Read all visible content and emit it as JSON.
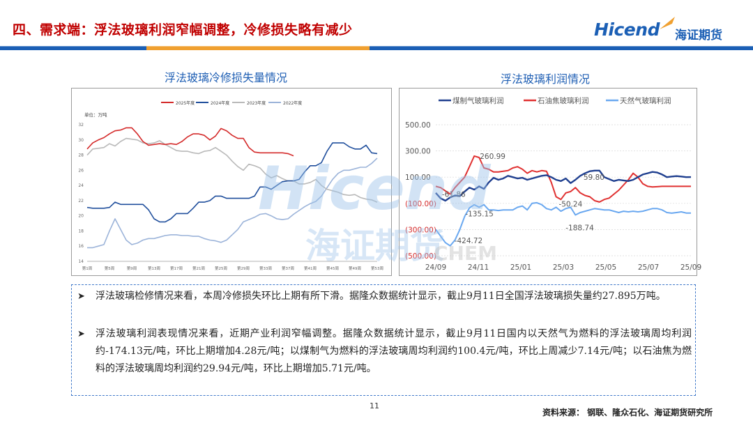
{
  "page": {
    "title": "四、需求端：浮法玻璃利润窄幅调整，冷修损失略有减少",
    "logo_text": "Hicend",
    "logo_cn": "海证期货",
    "page_number": "11",
    "source": "资料来源：  钢联、隆众石化、海证期货研究所"
  },
  "colors": {
    "brand_blue": "#1b5fb5",
    "title_red": "#c00000",
    "band_blue": "#1b5fb5",
    "band_orange": "#f0a030"
  },
  "bullets": [
    "浮法玻璃检修情况来看，本周冷修损失环比上期有所下滑。据隆众数据统计显示，截止9月11日全国浮法玻璃损失量约27.895万吨。",
    "浮法玻璃利润表现情况来看，近期产业利润窄幅调整。据隆众数据统计显示，截止9月11日国内以天然气为燃料的浮法玻璃周均利润约-174.13元/吨，环比上期增加4.28元/吨；以煤制气为燃料的浮法玻璃周均利润约100.4元/吨，环比上周减少7.14元/吨；以石油焦为燃料的浮法玻璃周均利润约29.94元/吨，环比上期增加5.71元/吨。"
  ],
  "chart_data": [
    {
      "type": "line",
      "title": "浮法玻璃冷修损失量情况",
      "unit_label": "单位：万吨",
      "ylim": [
        14,
        32
      ],
      "yticks": [
        "14",
        "16",
        "18",
        "20",
        "22",
        "24",
        "26",
        "28",
        "30",
        "32"
      ],
      "x_count": 53,
      "xticks": [
        {
          "i": 0,
          "label": "第1周"
        },
        {
          "i": 4,
          "label": "第5周"
        },
        {
          "i": 8,
          "label": "第9周"
        },
        {
          "i": 12,
          "label": "第13周"
        },
        {
          "i": 16,
          "label": "第17周"
        },
        {
          "i": 20,
          "label": "第21周"
        },
        {
          "i": 24,
          "label": "第25周"
        },
        {
          "i": 28,
          "label": "第29周"
        },
        {
          "i": 32,
          "label": "第33周"
        },
        {
          "i": 36,
          "label": "第37周"
        },
        {
          "i": 40,
          "label": "第41周"
        },
        {
          "i": 44,
          "label": "第45周"
        },
        {
          "i": 48,
          "label": "第49周"
        },
        {
          "i": 52,
          "label": "第53周"
        }
      ],
      "legend_position": "top",
      "series": [
        {
          "name": "2025年度",
          "color": "#d42a2a",
          "values": [
            28.8,
            29.6,
            30.0,
            30.3,
            30.8,
            31.2,
            31.3,
            31.6,
            31.6,
            30.8,
            29.8,
            29.3,
            29.4,
            29.5,
            29.4,
            29.5,
            29.4,
            29.8,
            30.4,
            30.8,
            30.8,
            30.6,
            30.0,
            30.5,
            31.5,
            31.2,
            30.6,
            30.2,
            30.2,
            29.0,
            28.4,
            28.3,
            28.3,
            28.3,
            28.3,
            28.3,
            28.2,
            27.9
          ]
        },
        {
          "name": "2024年度",
          "color": "#1f4e9c",
          "values": [
            21.1,
            21.0,
            21.0,
            21.0,
            21.1,
            21.8,
            21.5,
            21.5,
            21.5,
            21.5,
            21.5,
            20.8,
            19.6,
            19.2,
            19.2,
            19.6,
            20.3,
            20.3,
            20.3,
            21.0,
            21.8,
            21.8,
            22.0,
            22.6,
            22.6,
            22.3,
            22.3,
            22.3,
            22.3,
            22.3,
            22.6,
            23.8,
            23.8,
            23.5,
            24.0,
            24.5,
            24.6,
            24.6,
            24.8,
            25.8,
            26.6,
            26.6,
            27.0,
            28.5,
            29.6,
            29.6,
            29.6,
            29.1,
            28.8,
            28.8,
            29.3,
            28.3,
            28.2
          ]
        },
        {
          "name": "2023年度",
          "color": "#b9b9b9",
          "values": [
            28.0,
            28.8,
            28.9,
            29.0,
            29.5,
            29.2,
            29.8,
            30.2,
            30.1,
            30.0,
            29.6,
            29.5,
            29.6,
            29.9,
            29.4,
            29.0,
            28.6,
            28.5,
            28.5,
            28.3,
            28.2,
            28.5,
            28.6,
            29.0,
            28.5,
            28.0,
            27.2,
            26.5,
            26.0,
            26.8,
            26.6,
            26.3,
            25.5,
            25.0,
            25.3,
            24.9,
            24.6,
            24.6,
            24.2,
            24.2,
            24.4,
            24.8,
            24.0,
            23.5,
            23.3,
            23.1,
            22.8,
            22.7,
            22.8,
            22.4,
            22.2,
            22.1,
            21.8
          ]
        },
        {
          "name": "2022年度",
          "color": "#9bb3d9",
          "values": [
            15.8,
            15.8,
            16.0,
            16.2,
            18.0,
            19.6,
            18.2,
            16.8,
            16.2,
            16.4,
            16.8,
            17.0,
            17.0,
            17.2,
            17.4,
            17.5,
            17.5,
            17.4,
            17.4,
            17.3,
            17.3,
            17.0,
            16.8,
            16.7,
            16.5,
            16.8,
            17.5,
            18.2,
            19.2,
            19.5,
            19.8,
            20.2,
            20.3,
            20.0,
            19.6,
            19.5,
            19.6,
            20.2,
            20.7,
            21.2,
            21.6,
            21.9,
            22.6,
            23.7,
            24.8,
            25.6,
            26.0,
            26.0,
            26.2,
            26.4,
            26.4,
            26.9,
            27.6
          ]
        }
      ]
    },
    {
      "type": "line",
      "title": "浮法玻璃利润情况",
      "ylim": [
        -500,
        500
      ],
      "yticks": [
        "500.00",
        "300.00",
        "100.00",
        "(100.00)",
        "(300.00)",
        "(500.00)"
      ],
      "xticks": [
        "24/09",
        "24/11",
        "25/01",
        "25/03",
        "25/05",
        "25/07",
        "25/09"
      ],
      "x_count": 54,
      "legend_position": "top",
      "annotations": [
        "-61.86",
        "260.99",
        "-135.15",
        "-424.72",
        "59.80",
        "-50.24",
        "-188.74"
      ],
      "series": [
        {
          "name": "煤制气玻璃利润",
          "color": "#1f3f8f",
          "values": [
            -20,
            -61.86,
            -80,
            -55,
            -40,
            -45,
            -10,
            20,
            5,
            30,
            10,
            60,
            95,
            80,
            90,
            110,
            100,
            90,
            95,
            80,
            90,
            100,
            110,
            115,
            100,
            80,
            70,
            90,
            55,
            80,
            110,
            130,
            145,
            150,
            150,
            100,
            85,
            70,
            80,
            75,
            70,
            80,
            100,
            120,
            130,
            140,
            135,
            120,
            100,
            105,
            108,
            105,
            100,
            100.4
          ]
        },
        {
          "name": "石油焦玻璃利润",
          "color": "#e03030",
          "values": [
            30,
            20,
            -5,
            -30,
            20,
            60,
            100,
            180,
            260.99,
            250,
            170,
            160,
            140,
            140,
            145,
            150,
            170,
            180,
            160,
            130,
            150,
            140,
            150,
            145,
            60,
            -50,
            -70,
            -20,
            -10,
            20,
            -20,
            -40,
            -50,
            -80,
            -90,
            -70,
            -60,
            -30,
            0,
            40,
            80,
            130,
            100,
            50,
            30,
            25,
            27,
            29.94,
            30,
            30,
            30,
            30,
            30,
            29.94
          ]
        },
        {
          "name": "天然气玻璃利润",
          "color": "#6aa8f0",
          "values": [
            -300,
            -350,
            -400,
            -424.72,
            -380,
            -300,
            -200,
            -135.15,
            -110,
            -130,
            -110,
            -150,
            -150,
            -155,
            -150,
            -150,
            -150,
            -130,
            -120,
            -150,
            -100,
            -95,
            -110,
            -140,
            -150,
            -130,
            -160,
            -140,
            -130,
            -188.74,
            -170,
            -160,
            -150,
            -140,
            -145,
            -150,
            -150,
            -160,
            -170,
            -160,
            -165,
            -160,
            -165,
            -160,
            -150,
            -140,
            -140,
            -150,
            -170,
            -175,
            -170,
            -165,
            -174.13,
            -174.13
          ]
        }
      ]
    }
  ]
}
